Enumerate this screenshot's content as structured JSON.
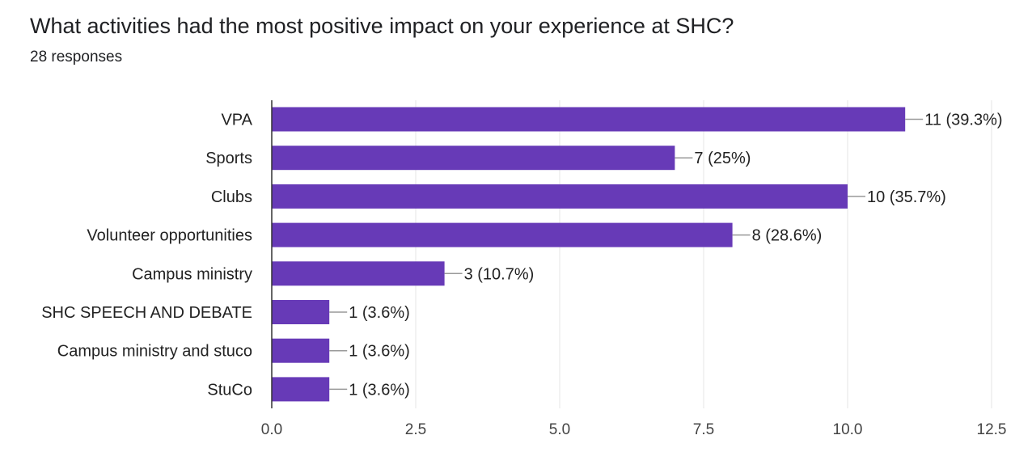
{
  "question": {
    "title": "What activities had the most positive impact on your experience at SHC?",
    "responses": "28 responses"
  },
  "chart_data": {
    "type": "bar",
    "orientation": "horizontal",
    "categories": [
      "VPA",
      "Sports",
      "Clubs",
      "Volunteer opportunities",
      "Campus ministry",
      "SHC SPEECH AND DEBATE",
      "Campus ministry and stuco",
      "StuCo"
    ],
    "values": [
      11,
      7,
      10,
      8,
      3,
      1,
      1,
      1
    ],
    "data_labels": [
      "11 (39.3%)",
      "7 (25%)",
      "10 (35.7%)",
      "8 (28.6%)",
      "3 (10.7%)",
      "1 (3.6%)",
      "1 (3.6%)",
      "1 (3.6%)"
    ],
    "xlim": [
      0,
      12.5
    ],
    "xticks": [
      0,
      2.5,
      5,
      7.5,
      10,
      12.5
    ],
    "xtick_labels": [
      "0.0",
      "2.5",
      "5.0",
      "7.5",
      "10.0",
      "12.5"
    ],
    "grid": true,
    "bar_color": "#673ab7",
    "grid_color": "#e6e6e6",
    "axis_color": "#333333",
    "leader_color": "#999999"
  }
}
